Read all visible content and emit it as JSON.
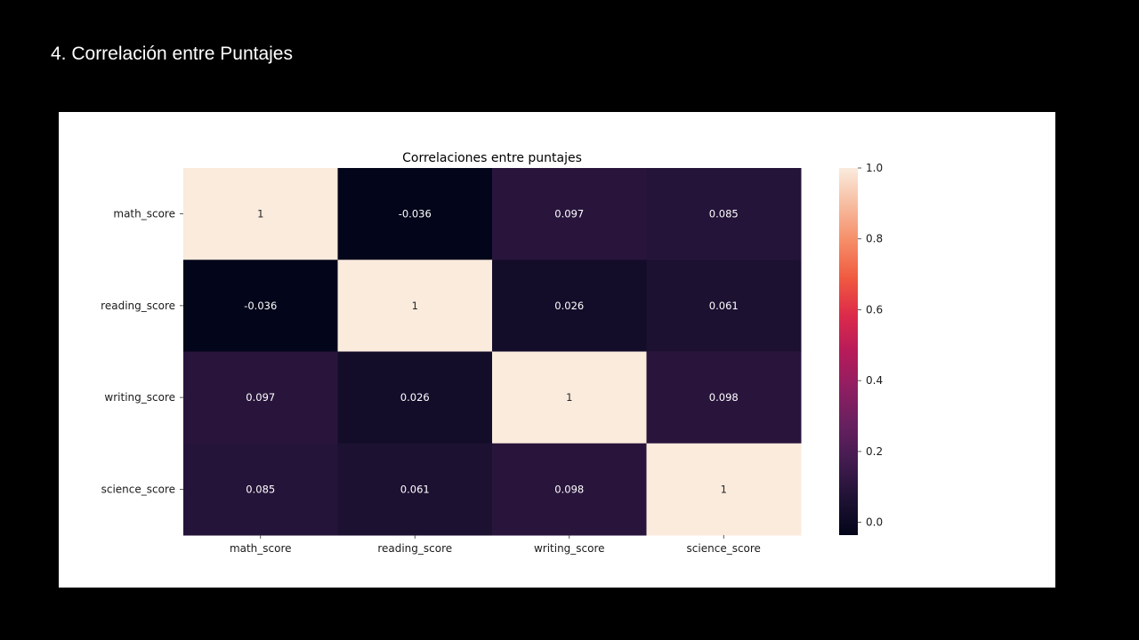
{
  "slide": {
    "title": "4. Correlación entre Puntajes"
  },
  "chart_data": {
    "type": "heatmap",
    "title": "Correlaciones entre puntajes",
    "xlabel": "",
    "ylabel": "",
    "x_categories": [
      "math_score",
      "reading_score",
      "writing_score",
      "science_score"
    ],
    "y_categories": [
      "math_score",
      "reading_score",
      "writing_score",
      "science_score"
    ],
    "values": [
      [
        1,
        -0.036,
        0.097,
        0.085
      ],
      [
        -0.036,
        1,
        0.026,
        0.061
      ],
      [
        0.097,
        0.026,
        1,
        0.098
      ],
      [
        0.085,
        0.061,
        0.098,
        1
      ]
    ],
    "cell_labels": [
      [
        "1",
        "-0.036",
        "0.097",
        "0.085"
      ],
      [
        "-0.036",
        "1",
        "0.026",
        "0.061"
      ],
      [
        "0.097",
        "0.026",
        "1",
        "0.098"
      ],
      [
        "0.085",
        "0.061",
        "0.098",
        "1"
      ]
    ],
    "colormap": "rocket",
    "colorbar": {
      "vmin": -0.036,
      "vmax": 1,
      "ticks": [
        0.0,
        0.2,
        0.4,
        0.6,
        0.8,
        1.0
      ],
      "tick_labels": [
        "0.0",
        "0.2",
        "0.4",
        "0.6",
        "0.8",
        "1.0"
      ]
    },
    "grid": false,
    "legend": "colorbar-right"
  }
}
